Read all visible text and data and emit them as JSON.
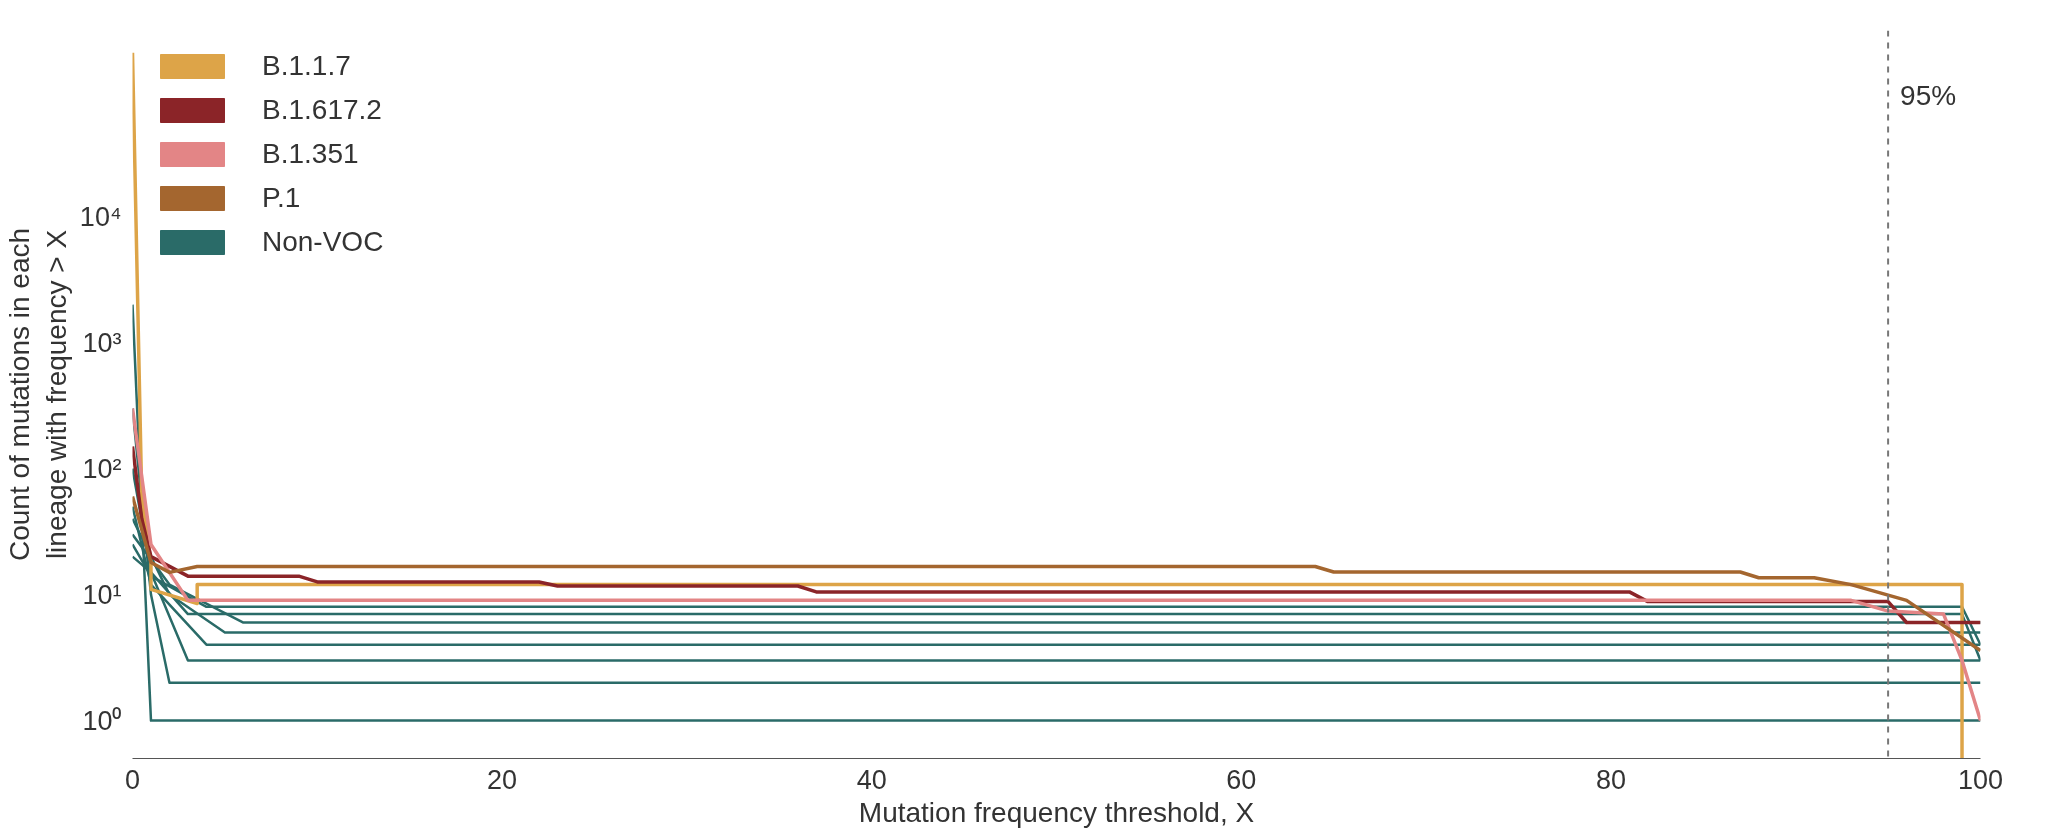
{
  "chart_data": {
    "type": "line",
    "xlabel": "Mutation frequency threshold, X",
    "ylabel": "Count of mutations in each\nlineage with frequency > X",
    "log": true,
    "xlim": [
      0,
      100
    ],
    "ylim": [
      0.5,
      300000
    ],
    "xticks": [
      0,
      20,
      40,
      60,
      80,
      100
    ],
    "yticks": [
      {
        "value": 1,
        "label": "10⁰"
      },
      {
        "value": 10,
        "label": "10¹"
      },
      {
        "value": 100,
        "label": "10²"
      },
      {
        "value": 1000,
        "label": "10³"
      },
      {
        "value": 10000,
        "label": "10⁴"
      }
    ],
    "grid": false,
    "legend": "top left",
    "marker": "none",
    "line_style": "solid",
    "series": [
      {
        "name": "Non-VOC",
        "color": "#2a6b68",
        "x": [
          0,
          1,
          100
        ],
        "values": [
          2000,
          1,
          1
        ]
      },
      {
        "color": "#2a6b68",
        "x": [
          0,
          1,
          2,
          100
        ],
        "values": [
          300,
          10,
          2,
          2
        ]
      },
      {
        "color": "#2a6b68",
        "x": [
          0,
          1,
          3,
          100
        ],
        "values": [
          100,
          15,
          3,
          3
        ]
      },
      {
        "color": "#2a6b68",
        "x": [
          0,
          1,
          4,
          100
        ],
        "values": [
          50,
          12,
          4,
          4
        ]
      },
      {
        "color": "#2a6b68",
        "x": [
          0,
          2,
          5,
          100
        ],
        "values": [
          40,
          10,
          5,
          5
        ]
      },
      {
        "color": "#2a6b68",
        "x": [
          0,
          2,
          6,
          100
        ],
        "values": [
          30,
          12,
          6,
          6
        ]
      },
      {
        "color": "#2a6b68",
        "x": [
          0,
          1,
          3,
          99,
          100
        ],
        "values": [
          20,
          15,
          7,
          7,
          3
        ]
      },
      {
        "color": "#2a6b68",
        "x": [
          0,
          1,
          4,
          99,
          100
        ],
        "values": [
          25,
          14,
          8,
          8,
          4
        ]
      },
      {
        "name": "B.1.1.7",
        "color": "#dda448",
        "x": [
          0,
          0.5,
          1,
          1,
          3.5,
          3.5,
          99,
          99
        ],
        "values": [
          200000,
          60,
          18,
          11,
          8.5,
          12,
          12,
          0.5
        ]
      },
      {
        "name": "B.1.617.2",
        "color": "#8b2428",
        "x": [
          0,
          0.5,
          1,
          3,
          9,
          10,
          22,
          23,
          36,
          37,
          81,
          82,
          95,
          96,
          100
        ],
        "values": [
          150,
          40,
          20,
          14,
          14,
          12.6,
          12.6,
          11.7,
          11.7,
          10.5,
          10.5,
          8.8,
          8.8,
          6,
          6
        ]
      },
      {
        "name": "B.1.351",
        "color": "#e38586",
        "x": [
          0,
          1,
          3,
          93,
          95,
          98,
          99,
          100
        ],
        "values": [
          300,
          25,
          9,
          9,
          7.4,
          7,
          3,
          1
        ]
      },
      {
        "name": "P.1",
        "color": "#a4662f",
        "x": [
          0,
          1,
          2,
          3.5,
          64,
          65,
          87,
          88,
          91,
          93,
          96,
          100
        ],
        "values": [
          60,
          18,
          15,
          16.7,
          16.7,
          15.1,
          15.1,
          13.6,
          13.6,
          12,
          9,
          3.6
        ]
      }
    ],
    "ref_lines": [
      {
        "axis": "x",
        "value": 95,
        "label": "95%",
        "color": "#777777",
        "line_style": "dashed"
      }
    ]
  }
}
